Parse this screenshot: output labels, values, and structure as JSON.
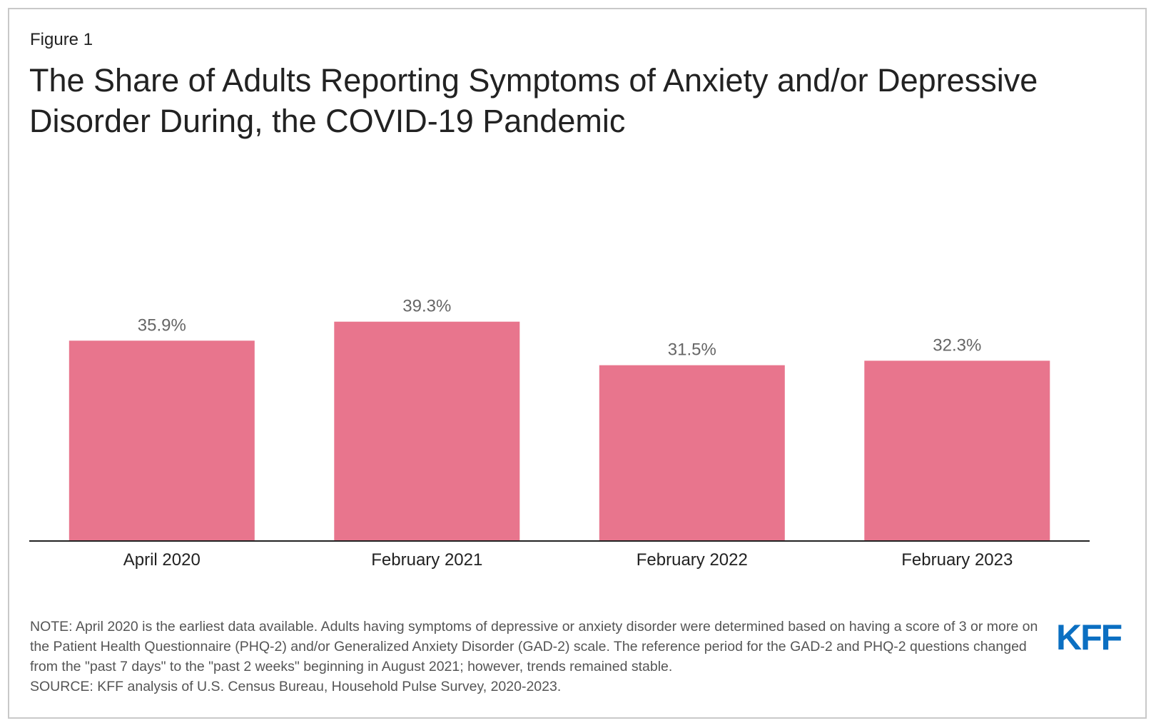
{
  "figure_label": "Figure 1",
  "title": "The Share of Adults Reporting Symptoms of Anxiety and/or Depressive Disorder During, the COVID-19 Pandemic",
  "note": "NOTE: April 2020 is the earliest data available. Adults having symptoms of depressive or anxiety disorder were determined based on having a score of 3 or more on the Patient Health Questionnaire (PHQ-2) and/or Generalized Anxiety Disorder (GAD-2) scale. The reference period for the GAD-2 and PHQ-2 questions changed from the \"past 7 days\" to the \"past 2 weeks\" beginning in August 2021; however, trends remained stable.",
  "source": "SOURCE: KFF analysis of U.S. Census Bureau, Household Pulse Survey, 2020-2023.",
  "logo": {
    "text": "KFF",
    "color": "#0b6fc2"
  },
  "colors": {
    "bar": "#e8758d",
    "axis": "#222222"
  },
  "chart_data": {
    "type": "bar",
    "categories": [
      "April 2020",
      "February 2021",
      "February 2022",
      "February 2023"
    ],
    "values": [
      35.9,
      39.3,
      31.5,
      32.3
    ],
    "value_labels": [
      "35.9%",
      "39.3%",
      "31.5%",
      "32.3%"
    ],
    "title": "The Share of Adults Reporting Symptoms of Anxiety and/or Depressive Disorder During, the COVID-19 Pandemic",
    "xlabel": "",
    "ylabel": "",
    "ylim": [
      0,
      100
    ],
    "grid": false,
    "legend": "none"
  }
}
